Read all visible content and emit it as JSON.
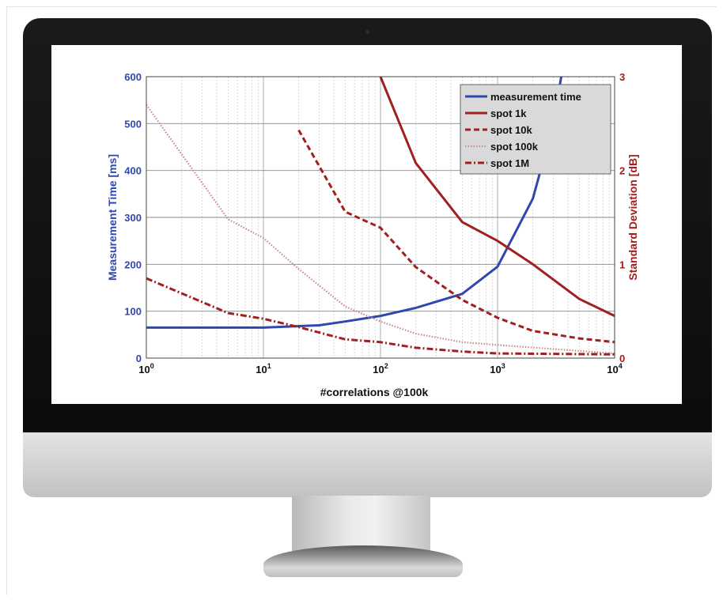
{
  "colors": {
    "measurement": "#3047b0",
    "spot": "#a02020",
    "spot100k": "#c98a8a"
  },
  "chart_data": {
    "type": "line",
    "x_scale": "log",
    "x_range": [
      1,
      10000
    ],
    "x_ticks": [
      {
        "value": 1,
        "base": "10",
        "exp": "0"
      },
      {
        "value": 10,
        "base": "10",
        "exp": "1"
      },
      {
        "value": 100,
        "base": "10",
        "exp": "2"
      },
      {
        "value": 1000,
        "base": "10",
        "exp": "3"
      },
      {
        "value": 10000,
        "base": "10",
        "exp": "4"
      }
    ],
    "xlabel": "#correlations @100k",
    "y_left": {
      "label": "Measurement Time [ms]",
      "range": [
        0,
        600
      ],
      "ticks": [
        "0",
        "100",
        "200",
        "300",
        "400",
        "500",
        "600"
      ]
    },
    "y_right": {
      "label": "Standard Deviation [dB]",
      "range": [
        0,
        3
      ],
      "ticks": [
        "0",
        "1",
        "2",
        "3"
      ]
    },
    "grid": true,
    "legend_position": "top-right",
    "series": [
      {
        "name": "measurement time",
        "axis": "left",
        "style": "solid",
        "color": "#3047b0",
        "x": [
          1,
          10,
          30,
          50,
          100,
          200,
          500,
          1000,
          2000,
          3000,
          3500
        ],
        "y": [
          65,
          65,
          70,
          78,
          90,
          107,
          137,
          195,
          340,
          500,
          600
        ]
      },
      {
        "name": "spot 1k",
        "axis": "right",
        "style": "solid",
        "color": "#a02020",
        "x": [
          100,
          200,
          500,
          1000,
          2000,
          5000,
          10000
        ],
        "y": [
          3.0,
          2.08,
          1.45,
          1.25,
          1.0,
          0.63,
          0.45
        ]
      },
      {
        "name": "spot 10k",
        "axis": "right",
        "style": "dashed",
        "color": "#a02020",
        "x": [
          20,
          50,
          100,
          200,
          500,
          1000,
          2000,
          5000,
          10000
        ],
        "y": [
          2.43,
          1.56,
          1.39,
          0.97,
          0.62,
          0.43,
          0.29,
          0.21,
          0.17
        ]
      },
      {
        "name": "spot 100k",
        "axis": "right",
        "style": "dotted",
        "color": "#c98a8a",
        "x": [
          1,
          5,
          10,
          20,
          50,
          100,
          200,
          500,
          1000,
          10000
        ],
        "y": [
          2.7,
          1.48,
          1.28,
          0.95,
          0.55,
          0.39,
          0.26,
          0.17,
          0.14,
          0.05
        ]
      },
      {
        "name": "spot 1M",
        "axis": "right",
        "style": "dashdot",
        "color": "#a02020",
        "x": [
          1,
          5,
          10,
          20,
          50,
          100,
          200,
          500,
          1000,
          10000
        ],
        "y": [
          0.85,
          0.48,
          0.42,
          0.33,
          0.2,
          0.17,
          0.11,
          0.07,
          0.05,
          0.04
        ]
      }
    ]
  }
}
